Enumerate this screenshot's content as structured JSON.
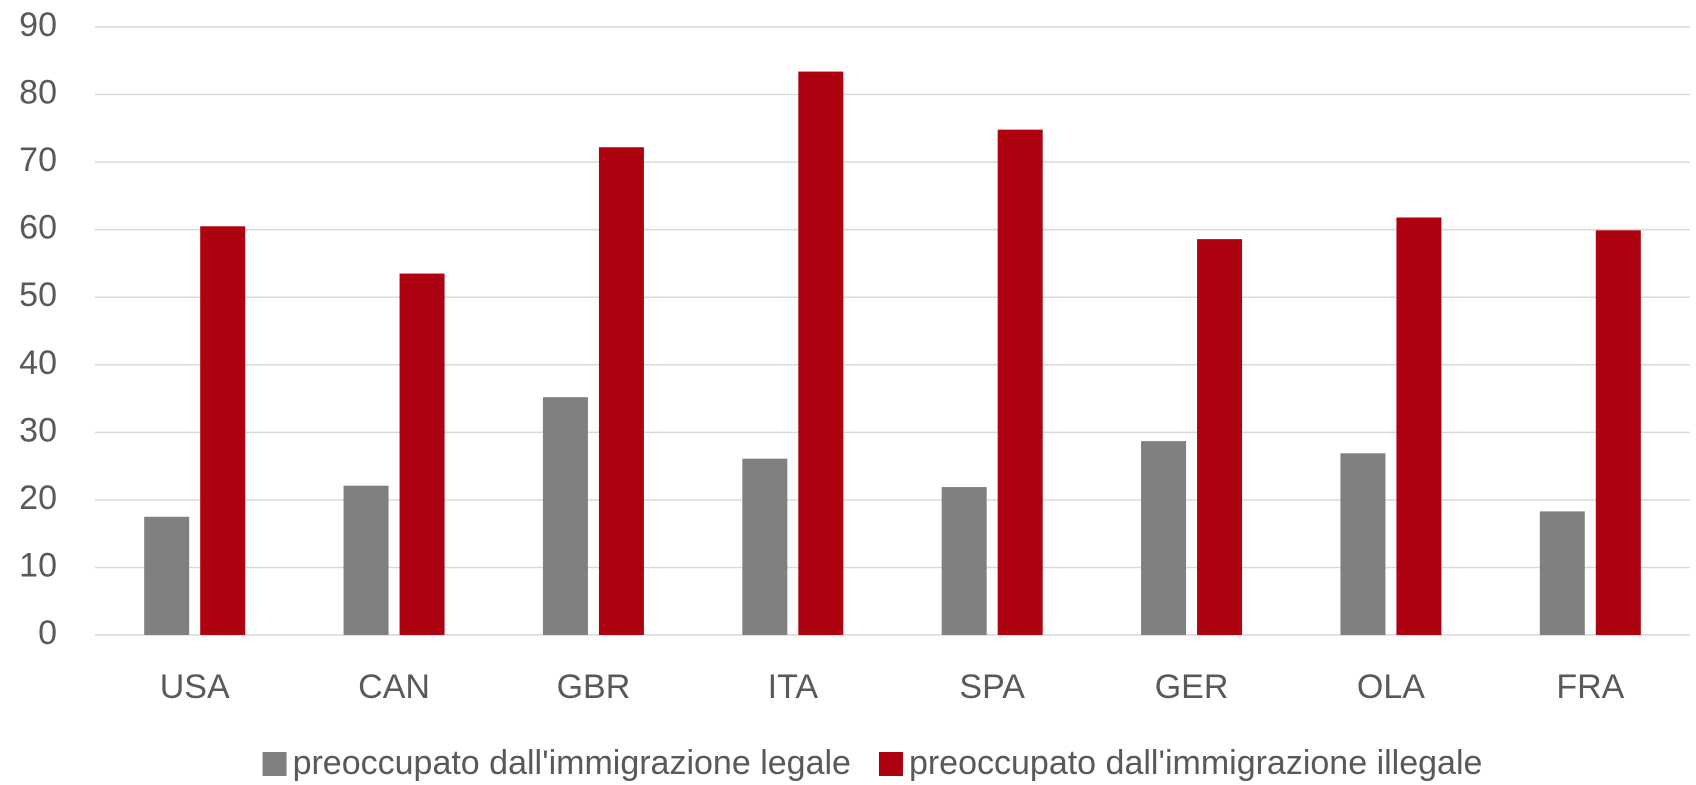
{
  "chart_data": {
    "type": "bar",
    "categories": [
      "USA",
      "CAN",
      "GBR",
      "ITA",
      "SPA",
      "GER",
      "OLA",
      "FRA"
    ],
    "series": [
      {
        "name": "preoccupato dall'immigrazione legale",
        "color": "#808080",
        "values": [
          17.5,
          22.1,
          35.2,
          26.1,
          21.9,
          28.7,
          26.9,
          18.3
        ]
      },
      {
        "name": "preoccupato dall'immigrazione illegale",
        "color": "#ad0210",
        "values": [
          60.5,
          53.5,
          72.2,
          83.4,
          74.8,
          58.6,
          61.8,
          59.9
        ]
      }
    ],
    "ylim": [
      0,
      90
    ],
    "yticks": [
      0,
      10,
      20,
      30,
      40,
      50,
      60,
      70,
      80,
      90
    ],
    "grid": true,
    "legend": "bottom"
  }
}
